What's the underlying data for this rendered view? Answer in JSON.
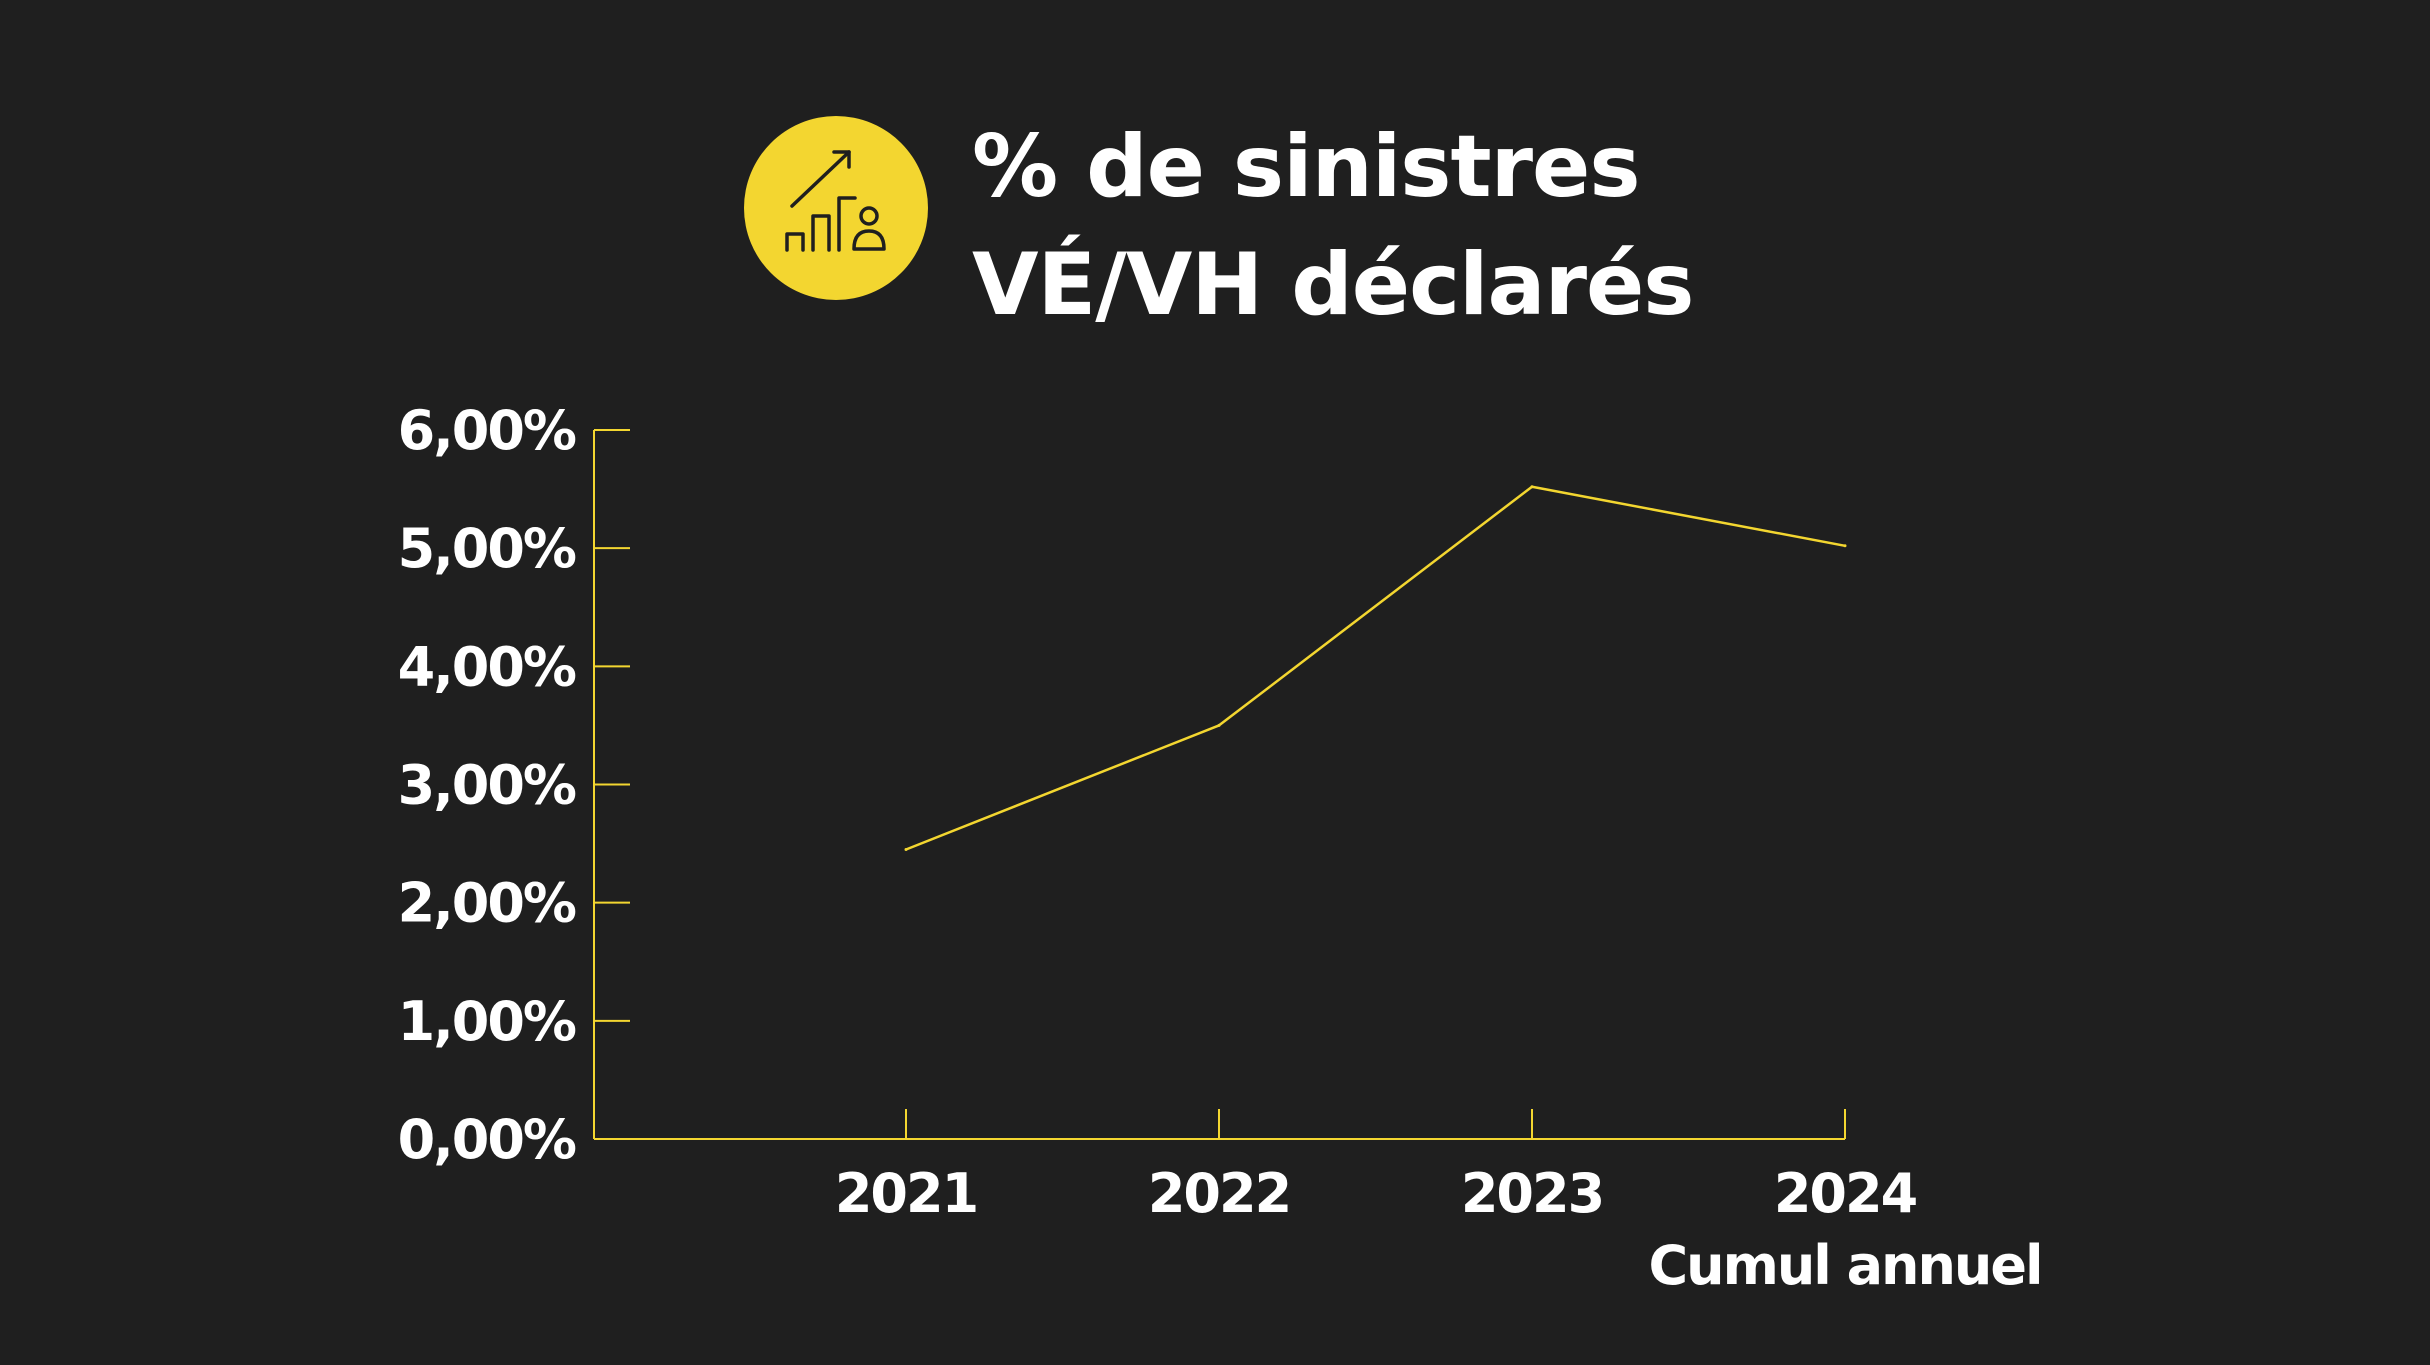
{
  "title_line1": "% de sinistres",
  "title_line2": "VÉ/VH déclarés",
  "icon": "growth-chart-person-icon",
  "colors": {
    "background": "#1f1f1f",
    "accent": "#f3d630",
    "text": "#ffffff"
  },
  "chart_data": {
    "type": "line",
    "categories": [
      "2021",
      "2022",
      "2023",
      "2024"
    ],
    "category_sublabels": [
      "",
      "",
      "",
      "Cumul annuel"
    ],
    "series": [
      {
        "values": [
          2.45,
          3.5,
          5.52,
          5.02
        ]
      }
    ],
    "ylim": [
      0,
      6
    ],
    "yticks": [
      "0,00%",
      "1,00%",
      "2,00%",
      "3,00%",
      "4,00%",
      "5,00%",
      "6,00%"
    ],
    "grid": false,
    "legend": "none"
  }
}
